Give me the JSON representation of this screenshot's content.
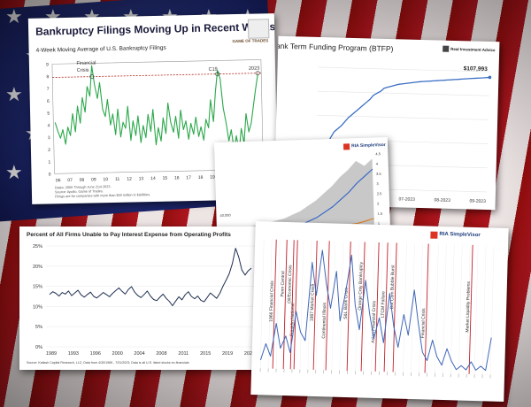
{
  "chart_data": [
    {
      "type": "line",
      "title": "Bankruptcy Filings Moving Up in Recent Weeks",
      "subtitle": "4-Week Moving Average of U.S. Bankruptcy Filings",
      "logo_text": "GAME OF TRADES",
      "x_tick_labels": [
        "06",
        "07",
        "08",
        "09",
        "10",
        "11",
        "12",
        "13",
        "14",
        "15",
        "16",
        "17",
        "18",
        "19",
        "20",
        "21",
        "22",
        "23"
      ],
      "y_tick_labels": [
        "0",
        "1",
        "2",
        "3",
        "4",
        "5",
        "6",
        "7",
        "8",
        "9"
      ],
      "ylim": [
        0,
        9
      ],
      "annotations": [
        "Financial Crisis",
        "C19",
        "2023"
      ],
      "reference_level": 7.9,
      "notes": [
        "Dates: 2006 Through June 21st 2023.",
        "Source: Apollo, Game of Trades.",
        "Filings are for companies with more than $50 million in liabilities."
      ],
      "series": [
        {
          "values": [
            4.2,
            3.5,
            2.9,
            3.6,
            2.4,
            3.8,
            3.1,
            4.9,
            3.4,
            5.5,
            4.1,
            6.2,
            5.0,
            7.1,
            6.3,
            8.8,
            7.2,
            6.1,
            7.4,
            5.2,
            4.6,
            6.0,
            3.9,
            4.8,
            3.1,
            5.2,
            2.9,
            4.1,
            3.6,
            5.4,
            2.6,
            4.2,
            3.0,
            4.6,
            2.4,
            3.8,
            2.8,
            4.7,
            3.3,
            5.1,
            2.2,
            3.6,
            2.5,
            4.4,
            3.1,
            5.6,
            4.0,
            3.2,
            4.5,
            2.7,
            5.0,
            3.4,
            4.1,
            2.6,
            3.9,
            3.0,
            4.4,
            2.8,
            3.6,
            2.5,
            4.2,
            3.5,
            5.8,
            4.0,
            6.4,
            8.2,
            7.5,
            5.1,
            3.9,
            2.4,
            3.3,
            1.6,
            2.8,
            1.5,
            3.4,
            2.2,
            4.6,
            3.1,
            3.8,
            5.2,
            6.6,
            7.8
          ]
        }
      ]
    },
    {
      "type": "line",
      "title": "Bank Term Funding Program (BTFP)",
      "logo_text": "Real Investment Advice",
      "x_tick_labels": [
        "06-2023",
        "07-2023",
        "08-2023",
        "09-2023"
      ],
      "end_label": "$107,993",
      "series": [
        {
          "values": [
            2,
            11,
            25,
            38,
            46,
            52,
            55,
            58,
            62,
            66,
            69,
            72,
            75,
            78,
            81,
            84,
            88,
            90,
            92,
            95,
            96,
            97,
            98,
            99,
            99.5,
            100,
            100.5,
            101,
            101.5,
            102,
            102.3,
            102.6,
            102.9,
            103.2,
            103.5,
            103.8,
            104.1,
            104.4,
            104.7,
            105,
            105.3,
            105.6,
            105.9,
            106.2,
            106.5,
            106.8,
            107,
            107.3,
            107.6,
            107.993
          ]
        }
      ]
    },
    {
      "type": "area",
      "logo_text": "RIA SimpleVisor",
      "y_tick_labels": [
        "4.5",
        "4",
        "3.5",
        "3",
        "2.5",
        "2",
        "1.5",
        "1",
        "0.5"
      ],
      "left_label": "40,000",
      "legend": [
        "Ratio",
        "Total Debt",
        "GDP"
      ],
      "series": [
        {
          "name": "Ratio",
          "values": [
            0.5,
            0.6,
            0.7,
            0.8,
            0.9,
            1.0,
            1.2,
            1.4,
            1.7,
            2.0,
            2.4,
            2.8,
            3.3,
            3.7,
            4.2,
            3.9,
            4.3
          ]
        },
        {
          "name": "Total Debt",
          "values": [
            0.1,
            0.15,
            0.2,
            0.25,
            0.3,
            0.4,
            0.5,
            0.6,
            0.8,
            1.0,
            1.3,
            1.6,
            2.0,
            2.4,
            2.9,
            3.3,
            3.7
          ]
        },
        {
          "name": "GDP",
          "values": [
            0.05,
            0.07,
            0.09,
            0.11,
            0.13,
            0.16,
            0.19,
            0.22,
            0.26,
            0.3,
            0.35,
            0.4,
            0.46,
            0.53,
            0.6,
            0.72,
            0.85
          ]
        }
      ]
    },
    {
      "type": "line",
      "title": "Percent of All Firms Unable to Pay Interest Expense from Operating Profits",
      "x_tick_labels": [
        "1989",
        "1993",
        "1996",
        "2000",
        "2004",
        "2008",
        "2011",
        "2015",
        "2019",
        "2023"
      ],
      "y_tick_labels": [
        "25%",
        "20%",
        "15%",
        "10%",
        "5%",
        "0%"
      ],
      "ylim": [
        0,
        27
      ],
      "source": "Source: Kailash Capital Research, LLC; Data from 4/30/1989 - 7/31/2023; Data is all U.S. listed stocks ex-financials",
      "series": [
        {
          "values": [
            13.5,
            14.2,
            13.8,
            13.1,
            14.0,
            13.6,
            14.4,
            13.2,
            13.9,
            14.6,
            13.4,
            12.8,
            13.5,
            14.1,
            13.0,
            12.6,
            13.3,
            14.0,
            13.5,
            12.9,
            13.8,
            14.5,
            15.2,
            14.3,
            13.6,
            14.8,
            15.5,
            14.1,
            13.2,
            12.7,
            13.5,
            14.4,
            13.1,
            12.2,
            11.9,
            12.8,
            13.6,
            12.5,
            11.7,
            10.6,
            11.8,
            12.9,
            12.1,
            13.4,
            14.2,
            13.0,
            12.4,
            13.1,
            12.0,
            11.6,
            12.7,
            13.9,
            13.2,
            12.5,
            13.8,
            15.6,
            17.2,
            18.9,
            21.5,
            25.4,
            23.1,
            19.8,
            18.5,
            19.6,
            20.3
          ]
        }
      ]
    },
    {
      "type": "line",
      "logo_text": "RIA SimpleVisor",
      "event_labels": [
        "1966 Financial Crisis",
        "Penn Central",
        "Franklin National",
        "1987 Market Crash",
        "Oil/Economic Crisis",
        "Continental Illinois",
        "S&L Bank Crisis",
        "Orange Cnty Bankruptcy",
        "Asian Financial Crisis",
        "LTCM Failure",
        "Dot Com Bubble Burst",
        "Financial Crisis",
        "Market Liquidity Problems"
      ],
      "series": [
        {
          "values": [
            0.2,
            0.6,
            0.3,
            1.1,
            0.5,
            0.8,
            0.4,
            1.4,
            0.9,
            0.7,
            2.6,
            1.8,
            2.9,
            2.1,
            1.5,
            2.4,
            1.2,
            1.9,
            2.8,
            1.6,
            1.0,
            2.2,
            1.4,
            0.8,
            1.3,
            0.7,
            1.9,
            1.1,
            0.6,
            1.4,
            0.9,
            2.0,
            1.2,
            0.5,
            0.3,
            0.8,
            0.4,
            0.2,
            0.6,
            0.3,
            0.1,
            0.2,
            0.1,
            0.3,
            0.1,
            0.2,
            0.1,
            0.9
          ]
        }
      ]
    }
  ]
}
